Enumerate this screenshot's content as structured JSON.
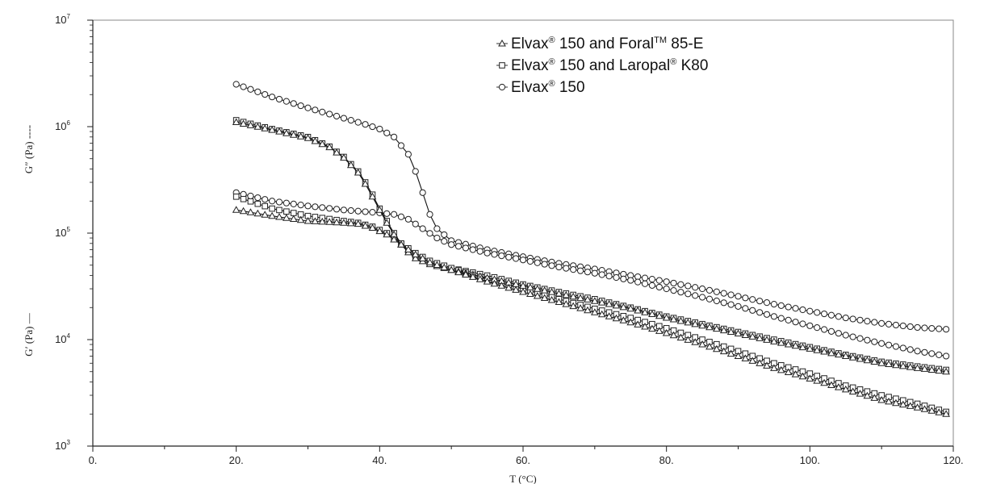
{
  "chart_data": {
    "type": "scatter",
    "title": "",
    "xlabel": "T (°C)",
    "ylabel_upper": "G″ (Pa) ----",
    "ylabel_lower": "G′ (Pa) —",
    "xlim": [
      0,
      120
    ],
    "ylim": [
      1000,
      10000000
    ],
    "yscale": "log",
    "grid": false,
    "legend_position": "top-right",
    "x_ticks": [
      {
        "value": 0,
        "label": "0."
      },
      {
        "value": 20,
        "label": "20."
      },
      {
        "value": 40,
        "label": "40."
      },
      {
        "value": 60,
        "label": "60."
      },
      {
        "value": 80,
        "label": "80."
      },
      {
        "value": 100,
        "label": "100."
      },
      {
        "value": 120,
        "label": "120."
      }
    ],
    "y_ticks": [
      {
        "value": 1000,
        "base": "10",
        "exp": "3"
      },
      {
        "value": 10000,
        "base": "10",
        "exp": "4"
      },
      {
        "value": 100000,
        "base": "10",
        "exp": "5"
      },
      {
        "value": 1000000,
        "base": "10",
        "exp": "6"
      },
      {
        "value": 10000000,
        "base": "10",
        "exp": "7"
      }
    ],
    "legend": [
      {
        "parts": [
          {
            "t": "Elvax"
          },
          {
            "t": "®",
            "sup": true
          },
          {
            "t": " 150 and Foral"
          },
          {
            "t": "TM",
            "sup": true
          },
          {
            "t": " 85-E"
          }
        ],
        "marker": "triangle"
      },
      {
        "parts": [
          {
            "t": "Elvax"
          },
          {
            "t": "®",
            "sup": true
          },
          {
            "t": " 150 and Laropal"
          },
          {
            "t": "®",
            "sup": true
          },
          {
            "t": " K80"
          }
        ],
        "marker": "square"
      },
      {
        "parts": [
          {
            "t": "Elvax"
          },
          {
            "t": "®",
            "sup": true
          },
          {
            "t": " 150"
          }
        ],
        "marker": "circle"
      }
    ],
    "series": [
      {
        "material": "Elvax 150",
        "modulus": "G′",
        "marker": "circle",
        "points": [
          [
            20,
            2500000
          ],
          [
            25,
            1900000
          ],
          [
            30,
            1500000
          ],
          [
            35,
            1200000
          ],
          [
            38,
            1050000
          ],
          [
            40,
            950000
          ],
          [
            42,
            800000
          ],
          [
            44,
            550000
          ],
          [
            45,
            380000
          ],
          [
            46,
            240000
          ],
          [
            47,
            150000
          ],
          [
            48,
            110000
          ],
          [
            50,
            85000
          ],
          [
            55,
            70000
          ],
          [
            60,
            60000
          ],
          [
            65,
            52000
          ],
          [
            70,
            46000
          ],
          [
            75,
            40000
          ],
          [
            80,
            35000
          ],
          [
            85,
            30000
          ],
          [
            90,
            25500
          ],
          [
            95,
            21500
          ],
          [
            100,
            18500
          ],
          [
            105,
            16000
          ],
          [
            110,
            14200
          ],
          [
            115,
            13000
          ],
          [
            119,
            12500
          ]
        ]
      },
      {
        "material": "Elvax 150",
        "modulus": "G″",
        "marker": "circle",
        "points": [
          [
            20,
            240000
          ],
          [
            25,
            200000
          ],
          [
            30,
            180000
          ],
          [
            35,
            165000
          ],
          [
            40,
            155000
          ],
          [
            42,
            150000
          ],
          [
            44,
            135000
          ],
          [
            46,
            110000
          ],
          [
            48,
            90000
          ],
          [
            50,
            78000
          ],
          [
            55,
            65000
          ],
          [
            60,
            56000
          ],
          [
            65,
            48000
          ],
          [
            70,
            42000
          ],
          [
            75,
            36000
          ],
          [
            80,
            30000
          ],
          [
            85,
            25000
          ],
          [
            90,
            20500
          ],
          [
            95,
            16500
          ],
          [
            100,
            13500
          ],
          [
            105,
            11000
          ],
          [
            110,
            9200
          ],
          [
            115,
            7800
          ],
          [
            119,
            7000
          ]
        ]
      },
      {
        "material": "Elvax 150 and Laropal K80",
        "modulus": "G′",
        "marker": "square",
        "points": [
          [
            20,
            1150000
          ],
          [
            25,
            950000
          ],
          [
            30,
            800000
          ],
          [
            33,
            650000
          ],
          [
            35,
            520000
          ],
          [
            37,
            380000
          ],
          [
            38,
            300000
          ],
          [
            39,
            230000
          ],
          [
            40,
            170000
          ],
          [
            41,
            130000
          ],
          [
            42,
            100000
          ],
          [
            43,
            80000
          ],
          [
            44,
            68000
          ],
          [
            45,
            60000
          ],
          [
            47,
            53000
          ],
          [
            50,
            47000
          ],
          [
            55,
            40000
          ],
          [
            60,
            33000
          ],
          [
            65,
            28000
          ],
          [
            70,
            24000
          ],
          [
            75,
            20000
          ],
          [
            80,
            16500
          ],
          [
            85,
            14000
          ],
          [
            90,
            11800
          ],
          [
            95,
            10000
          ],
          [
            100,
            8500
          ],
          [
            105,
            7200
          ],
          [
            110,
            6200
          ],
          [
            115,
            5600
          ],
          [
            119,
            5200
          ]
        ]
      },
      {
        "material": "Elvax 150 and Laropal K80",
        "modulus": "G″",
        "marker": "square",
        "points": [
          [
            20,
            220000
          ],
          [
            25,
            170000
          ],
          [
            30,
            145000
          ],
          [
            35,
            130000
          ],
          [
            37,
            125000
          ],
          [
            39,
            115000
          ],
          [
            41,
            100000
          ],
          [
            43,
            80000
          ],
          [
            45,
            65000
          ],
          [
            47,
            55000
          ],
          [
            50,
            47000
          ],
          [
            55,
            37000
          ],
          [
            60,
            30000
          ],
          [
            65,
            24000
          ],
          [
            70,
            19500
          ],
          [
            75,
            16000
          ],
          [
            80,
            12800
          ],
          [
            85,
            10000
          ],
          [
            90,
            7800
          ],
          [
            95,
            6000
          ],
          [
            100,
            4800
          ],
          [
            105,
            3700
          ],
          [
            110,
            3000
          ],
          [
            115,
            2500
          ],
          [
            119,
            2100
          ]
        ]
      },
      {
        "material": "Elvax 150 and Foral 85-E",
        "modulus": "G′",
        "marker": "triangle",
        "points": [
          [
            20,
            1100000
          ],
          [
            25,
            930000
          ],
          [
            30,
            780000
          ],
          [
            33,
            640000
          ],
          [
            35,
            510000
          ],
          [
            37,
            370000
          ],
          [
            38,
            290000
          ],
          [
            39,
            220000
          ],
          [
            40,
            165000
          ],
          [
            41,
            125000
          ],
          [
            42,
            97000
          ],
          [
            43,
            78000
          ],
          [
            44,
            66000
          ],
          [
            45,
            58000
          ],
          [
            47,
            51000
          ],
          [
            50,
            45000
          ],
          [
            55,
            38000
          ],
          [
            60,
            32000
          ],
          [
            65,
            27000
          ],
          [
            70,
            23000
          ],
          [
            75,
            19500
          ],
          [
            80,
            16000
          ],
          [
            85,
            13500
          ],
          [
            90,
            11400
          ],
          [
            95,
            9600
          ],
          [
            100,
            8200
          ],
          [
            105,
            7000
          ],
          [
            110,
            6000
          ],
          [
            115,
            5400
          ],
          [
            119,
            5000
          ]
        ]
      },
      {
        "material": "Elvax 150 and Foral 85-E",
        "modulus": "G″",
        "marker": "triangle",
        "points": [
          [
            20,
            165000
          ],
          [
            25,
            145000
          ],
          [
            30,
            130000
          ],
          [
            35,
            125000
          ],
          [
            37,
            122000
          ],
          [
            39,
            112000
          ],
          [
            41,
            97000
          ],
          [
            43,
            78000
          ],
          [
            45,
            63000
          ],
          [
            47,
            53000
          ],
          [
            50,
            45000
          ],
          [
            55,
            35000
          ],
          [
            60,
            28000
          ],
          [
            65,
            22500
          ],
          [
            70,
            18000
          ],
          [
            75,
            14500
          ],
          [
            80,
            11500
          ],
          [
            85,
            9000
          ],
          [
            90,
            7000
          ],
          [
            95,
            5400
          ],
          [
            100,
            4300
          ],
          [
            105,
            3400
          ],
          [
            110,
            2700
          ],
          [
            115,
            2300
          ],
          [
            119,
            2000
          ]
        ]
      }
    ]
  }
}
